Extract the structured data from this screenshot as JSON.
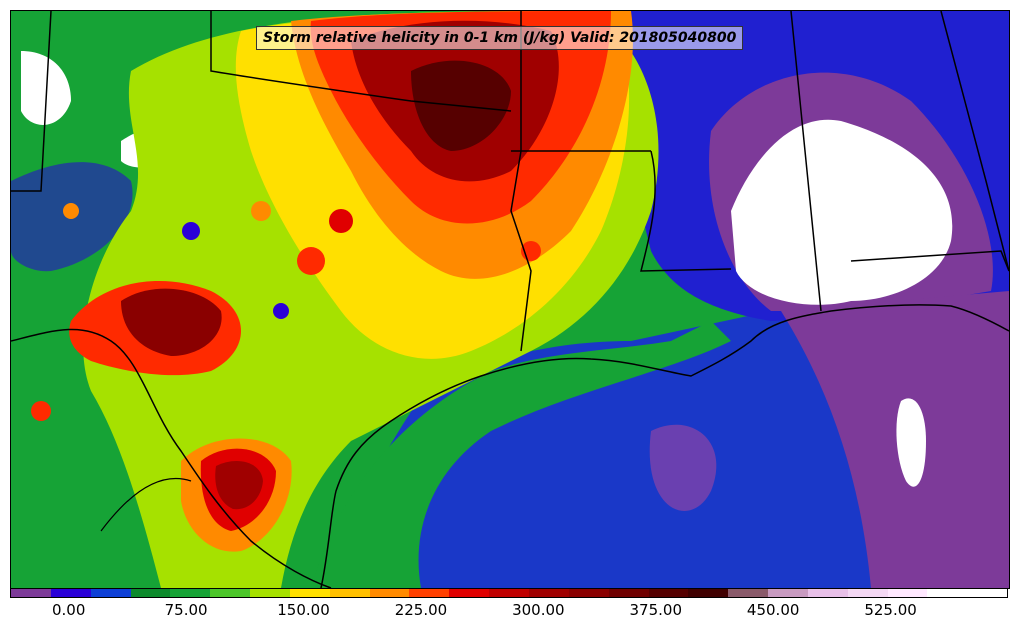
{
  "title": "Storm relative helicity in 0-1 km (J/kg) Valid: 201805040800",
  "colorbar": {
    "colors": [
      "#7d3a99",
      "#2a00d8",
      "#0d3fd6",
      "#0c8a2c",
      "#16a336",
      "#4cc62a",
      "#a6e100",
      "#ffe000",
      "#ffc000",
      "#ff8a00",
      "#ff4000",
      "#e00000",
      "#c00000",
      "#a00000",
      "#8a0000",
      "#700000",
      "#560000",
      "#400000",
      "#8a5a6a",
      "#c89ac0",
      "#e8c0e8",
      "#f4d8f4",
      "#ffe8ff",
      "#ffffff",
      "#ffffff"
    ],
    "tick_labels": [
      "0.00",
      "75.00",
      "150.00",
      "225.00",
      "300.00",
      "375.00",
      "450.00",
      "525.00"
    ],
    "tick_values": [
      0,
      75,
      150,
      225,
      300,
      375,
      450,
      525
    ],
    "min": -37.5,
    "max": 600
  }
}
